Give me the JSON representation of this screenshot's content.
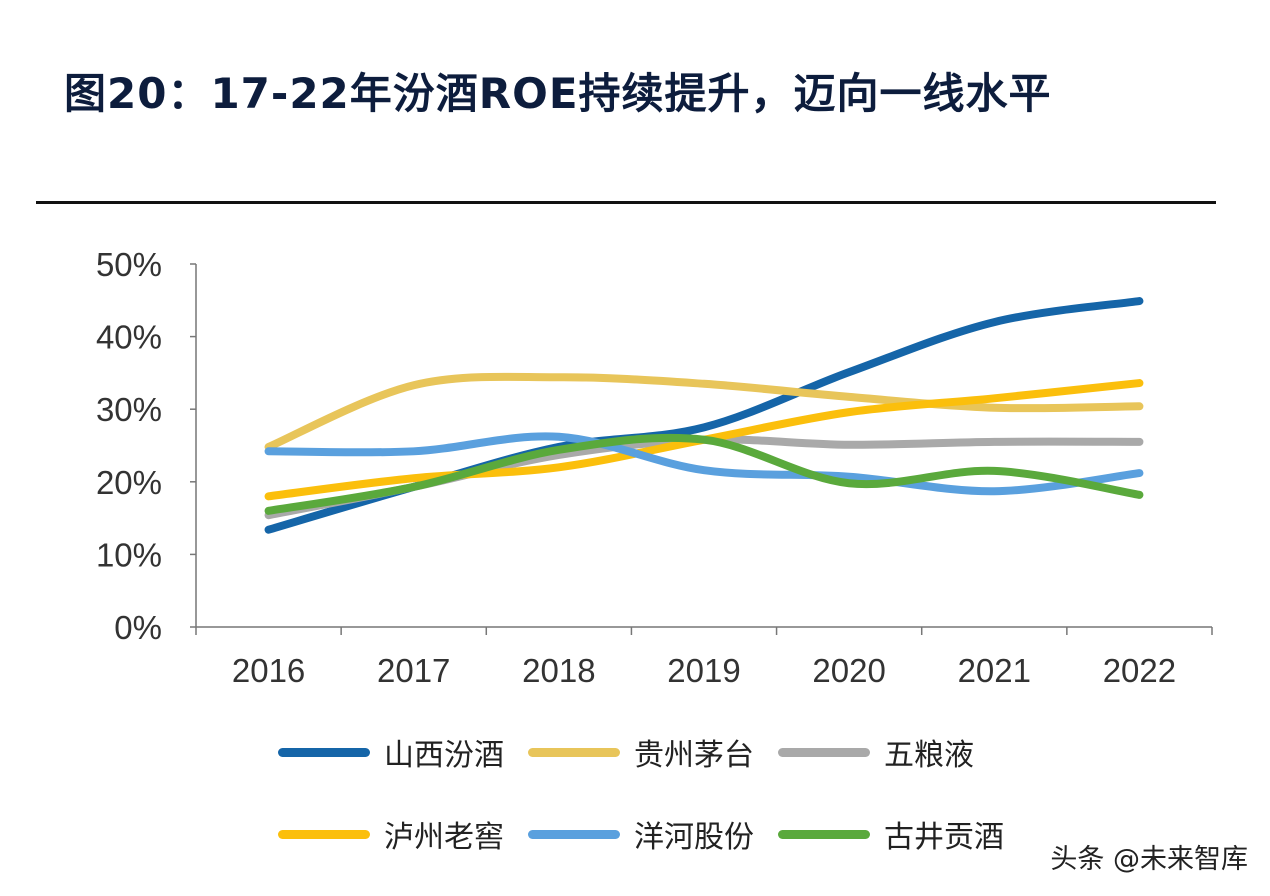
{
  "title": "图20：17-22年汾酒ROE持续提升，迈向一线水平",
  "watermark": "头条 @未来智库",
  "chart_data": {
    "type": "line",
    "categories": [
      "2016",
      "2017",
      "2018",
      "2019",
      "2020",
      "2021",
      "2022"
    ],
    "ylim": [
      0,
      50
    ],
    "yticks": [
      "0%",
      "10%",
      "20%",
      "30%",
      "40%",
      "50%"
    ],
    "legend_position": "bottom",
    "grid": false,
    "series": [
      {
        "name": "山西汾酒",
        "color": "#1565a8",
        "values": [
          13.4,
          19.3,
          24.8,
          27.5,
          35.1,
          42.0,
          44.9
        ]
      },
      {
        "name": "贵州茅台",
        "color": "#e8c55a",
        "values": [
          24.8,
          33.3,
          34.4,
          33.5,
          31.7,
          30.2,
          30.4
        ]
      },
      {
        "name": "五粮液",
        "color": "#a9a9a9",
        "values": [
          15.4,
          19.3,
          23.7,
          25.8,
          25.1,
          25.5,
          25.5
        ]
      },
      {
        "name": "泸州老窖",
        "color": "#fbbf0c",
        "values": [
          18.0,
          20.5,
          22.0,
          25.8,
          29.6,
          31.5,
          33.6
        ]
      },
      {
        "name": "洋河股份",
        "color": "#5aa0de",
        "values": [
          24.2,
          24.2,
          26.2,
          21.6,
          20.7,
          18.7,
          21.2
        ]
      },
      {
        "name": "古井贡酒",
        "color": "#5aa93c",
        "values": [
          16.0,
          19.3,
          24.4,
          25.8,
          19.8,
          21.5,
          18.2
        ]
      }
    ]
  }
}
